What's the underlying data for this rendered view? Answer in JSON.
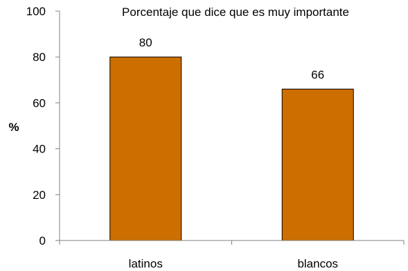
{
  "chart_data": {
    "type": "bar",
    "title": "Porcentaje que dice que es muy importante",
    "xlabel": "",
    "ylabel": "%",
    "categories": [
      "latinos",
      "blancos"
    ],
    "values": [
      80,
      66
    ],
    "data_labels": [
      "80",
      "66"
    ],
    "ylim": [
      0,
      100
    ],
    "yticks": [
      0,
      20,
      40,
      60,
      80,
      100
    ],
    "ytick_labels": [
      "0",
      "20",
      "40",
      "60",
      "80",
      "100"
    ],
    "grid": false,
    "legend": "none",
    "colors": {
      "bar_fill": "#cc6f00",
      "bar_stroke": "#000000",
      "axis": "#808080"
    }
  }
}
